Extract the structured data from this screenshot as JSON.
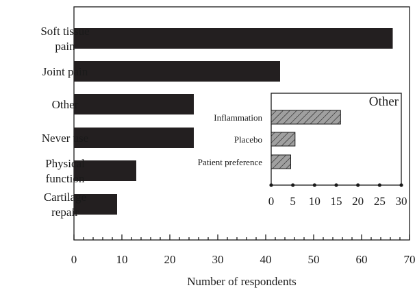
{
  "chart_data": [
    {
      "type": "bar",
      "orientation": "horizontal",
      "categories": [
        [
          "Soft tissue",
          "pain"
        ],
        [
          "Joint pain"
        ],
        [
          "Other"
        ],
        [
          "Never use"
        ],
        [
          "Physical",
          "function"
        ],
        [
          "Cartilage",
          "repair"
        ]
      ],
      "values": [
        66.5,
        43,
        25,
        25,
        13,
        9
      ],
      "xlabel": "Number of respondents",
      "xlim": [
        0,
        70
      ],
      "xticks": [
        0,
        10,
        20,
        30,
        40,
        50,
        60,
        70
      ],
      "bar_color": "#231f20",
      "grid": false
    },
    {
      "type": "bar",
      "orientation": "horizontal",
      "title": "Other",
      "categories": [
        "Inflammation",
        "Placebo",
        "Patient preference"
      ],
      "values": [
        16,
        5.5,
        4.5
      ],
      "xlim": [
        0,
        30
      ],
      "xticks": [
        0,
        5,
        10,
        15,
        20,
        25,
        30
      ],
      "bar_color": "#a0a0a0",
      "bar_pattern": "diagonal-hatch",
      "grid": false
    }
  ]
}
